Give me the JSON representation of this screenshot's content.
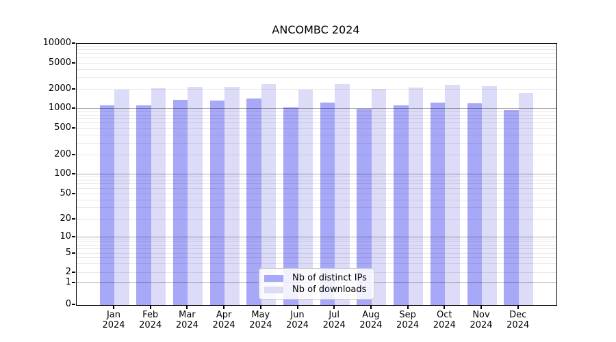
{
  "title": "ANCOMBC 2024",
  "chart_data": {
    "type": "bar",
    "title": "ANCOMBC 2024",
    "scale": "pseudo-log",
    "ylim": [
      0,
      10000
    ],
    "grid": "horizontal major+minor, drawn over bars",
    "legend_position": "inside bottom-center",
    "year": "2024",
    "months": [
      "Jan",
      "Feb",
      "Mar",
      "Apr",
      "May",
      "Jun",
      "Jul",
      "Aug",
      "Sep",
      "Oct",
      "Nov",
      "Dec"
    ],
    "categories": [
      "Jan 2024",
      "Feb 2024",
      "Mar 2024",
      "Apr 2024",
      "May 2024",
      "Jun 2024",
      "Jul 2024",
      "Aug 2024",
      "Sep 2024",
      "Oct 2024",
      "Nov 2024",
      "Dec 2024"
    ],
    "yticks": [
      0,
      1,
      2,
      5,
      10,
      20,
      50,
      100,
      200,
      500,
      1000,
      2000,
      5000,
      10000
    ],
    "series": [
      {
        "name": "Nb of distinct IPs",
        "color": "#a8a8f8",
        "values": [
          1140,
          1130,
          1400,
          1360,
          1460,
          1060,
          1260,
          1010,
          1150,
          1240,
          1210,
          950
        ]
      },
      {
        "name": "Nb of downloads",
        "color": "#dcdcf8",
        "values": [
          2000,
          2120,
          2230,
          2200,
          2450,
          1990,
          2430,
          2030,
          2160,
          2380,
          2250,
          1780
        ]
      }
    ]
  },
  "colors": {
    "bar_distinct_ips": "#a8a8f8",
    "bar_downloads": "#dcdcf8",
    "axis": "#000000",
    "gridline_minor": "#ececec",
    "gridline_decade": "#a6a6a6",
    "legend_border": "#cccccc",
    "background": "#ffffff"
  }
}
